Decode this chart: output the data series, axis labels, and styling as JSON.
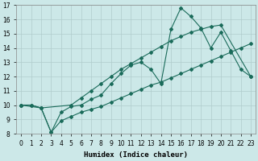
{
  "xlabel": "Humidex (Indice chaleur)",
  "bg_color": "#cce8e8",
  "grid_color": "#b0cccc",
  "line_color": "#1a6b5a",
  "xlim": [
    -0.5,
    23.5
  ],
  "ylim": [
    8,
    17
  ],
  "xticks": [
    0,
    1,
    2,
    3,
    4,
    5,
    6,
    7,
    8,
    9,
    10,
    11,
    12,
    13,
    14,
    15,
    16,
    17,
    18,
    19,
    20,
    21,
    22,
    23
  ],
  "yticks": [
    8,
    9,
    10,
    11,
    12,
    13,
    14,
    15,
    16,
    17
  ],
  "line1_x": [
    0,
    1,
    2,
    3,
    4,
    5,
    6,
    7,
    8,
    9,
    10,
    11,
    12,
    13,
    14,
    15,
    16,
    17,
    18,
    19,
    20,
    21,
    22,
    23
  ],
  "line1_y": [
    10.0,
    10.0,
    9.8,
    8.1,
    9.5,
    9.9,
    10.0,
    10.4,
    10.7,
    11.5,
    12.2,
    12.8,
    13.0,
    12.5,
    11.5,
    15.3,
    16.8,
    16.2,
    15.4,
    14.0,
    15.1,
    13.8,
    12.5,
    12.0
  ],
  "line2_x": [
    0,
    2,
    5,
    6,
    7,
    8,
    9,
    10,
    11,
    12,
    13,
    14,
    15,
    16,
    17,
    18,
    19,
    20,
    23
  ],
  "line2_y": [
    10.0,
    9.8,
    10.0,
    10.5,
    11.0,
    11.5,
    12.0,
    12.5,
    12.9,
    13.3,
    13.7,
    14.1,
    14.5,
    14.8,
    15.1,
    15.3,
    15.5,
    15.6,
    12.0
  ],
  "line3_x": [
    0,
    1,
    2,
    3,
    4,
    5,
    6,
    7,
    8,
    9,
    10,
    11,
    12,
    13,
    14,
    15,
    16,
    17,
    18,
    19,
    20,
    21,
    22,
    23
  ],
  "line3_y": [
    10.0,
    10.0,
    9.8,
    8.1,
    8.9,
    9.2,
    9.5,
    9.7,
    9.9,
    10.2,
    10.5,
    10.8,
    11.1,
    11.4,
    11.6,
    11.9,
    12.2,
    12.5,
    12.8,
    13.1,
    13.4,
    13.7,
    14.0,
    14.3
  ],
  "marker": "D",
  "markersize": 2.0,
  "linewidth": 0.8
}
